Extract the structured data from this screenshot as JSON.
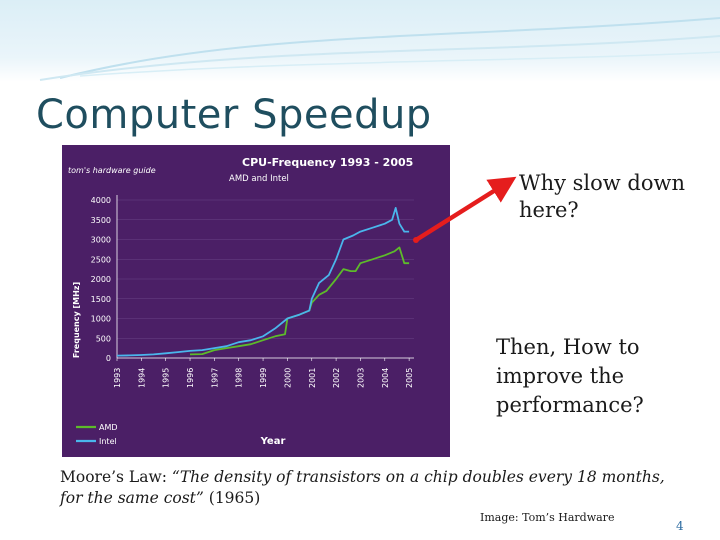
{
  "slide": {
    "title": "Computer Speedup",
    "callout_1": "Why slow down here?",
    "callout_2": "Then, How to improve the performance?",
    "moore_law": {
      "lead": "Moore’s Law: ",
      "quote": "“The density of transistors on a chip doubles every 18 months, for the same cost”",
      "year": " (1965)"
    },
    "image_credit": "Image: Tom’s Hardware",
    "page_number": "4"
  },
  "colors": {
    "title": "#1f4e5f",
    "chart_bg": "#4b1f66",
    "amd": "#5dbb2a",
    "intel": "#4ab6ec",
    "arrow": "#e51d1d"
  },
  "chart_data": {
    "type": "line",
    "title": "CPU-Frequency 1993 - 2005",
    "subtitle": "AMD and Intel",
    "logo_text": "tom's hardware guide",
    "xlabel": "Year",
    "ylabel": "Frequency [MHz]",
    "ylim": [
      0,
      4000
    ],
    "yticks": [
      0,
      500,
      1000,
      1500,
      2000,
      2500,
      3000,
      3500,
      4000
    ],
    "xticks": [
      "1993",
      "1994",
      "1995",
      "1996",
      "1997",
      "1998",
      "1999",
      "2000",
      "2001",
      "2002",
      "2003",
      "2004",
      "2005"
    ],
    "legend_position": "bottom-left",
    "series": [
      {
        "name": "AMD",
        "color": "#5dbb2a",
        "points": [
          [
            1996.0,
            90
          ],
          [
            1996.5,
            100
          ],
          [
            1997.0,
            200
          ],
          [
            1997.5,
            250
          ],
          [
            1998.0,
            300
          ],
          [
            1998.5,
            350
          ],
          [
            1999.0,
            450
          ],
          [
            1999.5,
            550
          ],
          [
            1999.9,
            600
          ],
          [
            2000.0,
            1000
          ],
          [
            2000.5,
            1100
          ],
          [
            2000.9,
            1200
          ],
          [
            2001.0,
            1400
          ],
          [
            2001.3,
            1600
          ],
          [
            2001.6,
            1700
          ],
          [
            2002.0,
            2000
          ],
          [
            2002.3,
            2250
          ],
          [
            2002.6,
            2200
          ],
          [
            2002.8,
            2200
          ],
          [
            2003.0,
            2400
          ],
          [
            2003.5,
            2500
          ],
          [
            2004.0,
            2600
          ],
          [
            2004.4,
            2700
          ],
          [
            2004.6,
            2800
          ],
          [
            2004.8,
            2400
          ],
          [
            2005.0,
            2400
          ]
        ]
      },
      {
        "name": "Intel",
        "color": "#4ab6ec",
        "points": [
          [
            1993.0,
            60
          ],
          [
            1993.5,
            66
          ],
          [
            1994.0,
            75
          ],
          [
            1994.5,
            90
          ],
          [
            1995.0,
            120
          ],
          [
            1995.5,
            150
          ],
          [
            1996.0,
            180
          ],
          [
            1996.5,
            200
          ],
          [
            1997.0,
            250
          ],
          [
            1997.5,
            300
          ],
          [
            1998.0,
            400
          ],
          [
            1998.5,
            450
          ],
          [
            1999.0,
            550
          ],
          [
            1999.5,
            750
          ],
          [
            2000.0,
            1000
          ],
          [
            2000.5,
            1100
          ],
          [
            2000.9,
            1200
          ],
          [
            2001.0,
            1500
          ],
          [
            2001.3,
            1900
          ],
          [
            2001.7,
            2100
          ],
          [
            2002.0,
            2500
          ],
          [
            2002.3,
            3000
          ],
          [
            2002.7,
            3100
          ],
          [
            2003.0,
            3200
          ],
          [
            2003.5,
            3300
          ],
          [
            2004.0,
            3400
          ],
          [
            2004.3,
            3500
          ],
          [
            2004.45,
            3800
          ],
          [
            2004.6,
            3400
          ],
          [
            2004.8,
            3200
          ],
          [
            2005.0,
            3200
          ]
        ]
      }
    ]
  }
}
